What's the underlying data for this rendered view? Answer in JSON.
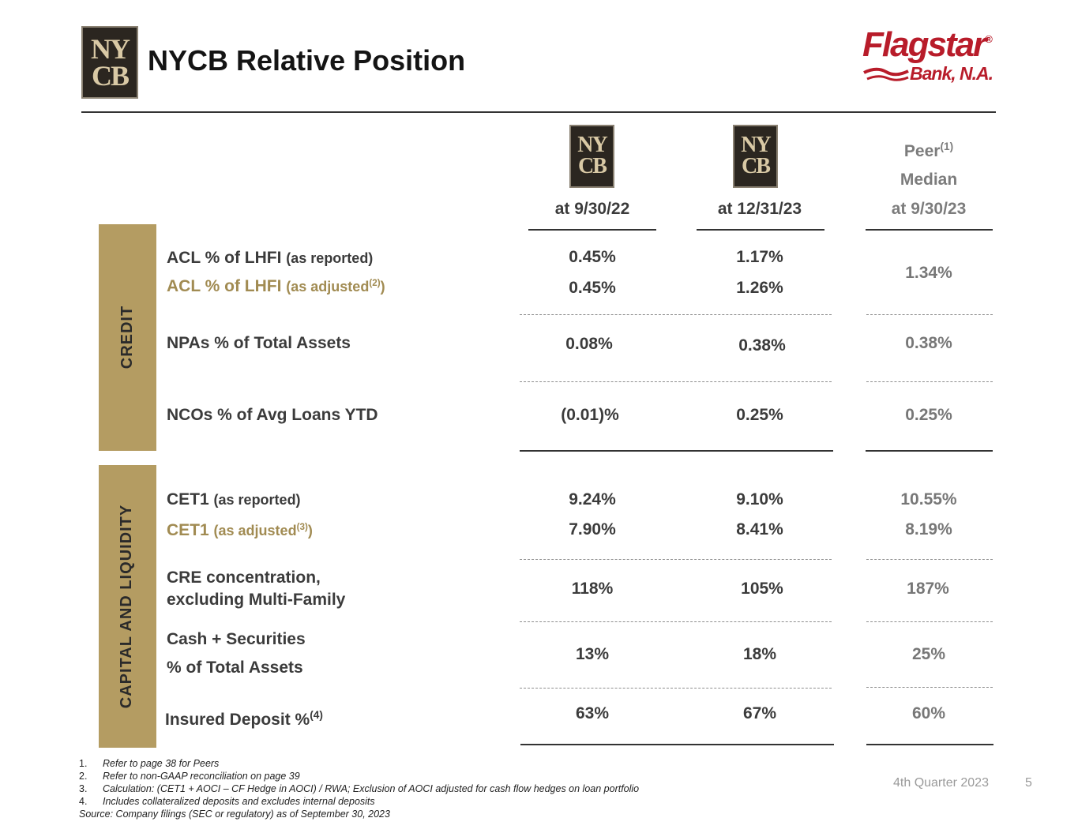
{
  "header": {
    "title": "NYCB Relative Position",
    "logo_monogram": "NYCB",
    "partner_logo_name": "Flagstar",
    "partner_logo_reg": "®",
    "partner_logo_sub": "Bank, N.A."
  },
  "columns": {
    "col1": "at 9/30/22",
    "col2": "at 12/31/23",
    "peer_line1": "Peer",
    "peer_sup": "(1)",
    "peer_line2": "Median",
    "peer_line3": "at 9/30/23"
  },
  "sections": {
    "credit": "CREDIT",
    "capital": "CAPITAL AND LIQUIDITY"
  },
  "rows": {
    "acl_reported": {
      "label": "ACL % of LHFI",
      "sub": "(as reported)",
      "v1": "0.45%",
      "v2": "1.17%"
    },
    "acl_adjusted": {
      "label": "ACL % of LHFI",
      "sub": "(as adjusted",
      "sup": "(2)",
      "close": ")",
      "v1": "0.45%",
      "v2": "1.26%"
    },
    "acl_peer": "1.34%",
    "npas": {
      "label": "NPAs % of Total Assets",
      "v1": "0.08%",
      "v2": "0.38%",
      "peer": "0.38%"
    },
    "ncos": {
      "label": "NCOs % of Avg Loans YTD",
      "v1": "(0.01)%",
      "v2": "0.25%",
      "peer": "0.25%"
    },
    "cet1_reported": {
      "label": "CET1",
      "sub": "(as reported)",
      "v1": "9.24%",
      "v2": "9.10%",
      "peer": "10.55%"
    },
    "cet1_adjusted": {
      "label": "CET1",
      "sub": "(as adjusted",
      "sup": "(3)",
      "close": ")",
      "v1": "7.90%",
      "v2": "8.41%",
      "peer": "8.19%"
    },
    "cre": {
      "label1": "CRE concentration,",
      "label2": "excluding Multi-Family",
      "v1": "118%",
      "v2": "105%",
      "peer": "187%"
    },
    "cash": {
      "label1": "Cash + Securities",
      "label2": "% of Total Assets",
      "v1": "13%",
      "v2": "18%",
      "peer": "25%"
    },
    "insured": {
      "label": "Insured Deposit %",
      "sup": "(4)",
      "v1": "63%",
      "v2": "67%",
      "peer": "60%"
    }
  },
  "footnotes": [
    {
      "num": "1.",
      "text": "Refer to page 38 for Peers"
    },
    {
      "num": "2.",
      "text": "Refer to non-GAAP reconciliation on page 39"
    },
    {
      "num": "3.",
      "text": "Calculation: (CET1 + AOCI – CF Hedge in AOCI) / RWA; Exclusion of AOCI adjusted for cash flow hedges on loan portfolio"
    },
    {
      "num": "4.",
      "text": "Includes collateralized deposits and excludes internal deposits"
    }
  ],
  "source": "Source: Company filings (SEC or regulatory) as of September 30, 2023",
  "footer": {
    "quarter": "4th Quarter 2023",
    "page": "5"
  }
}
